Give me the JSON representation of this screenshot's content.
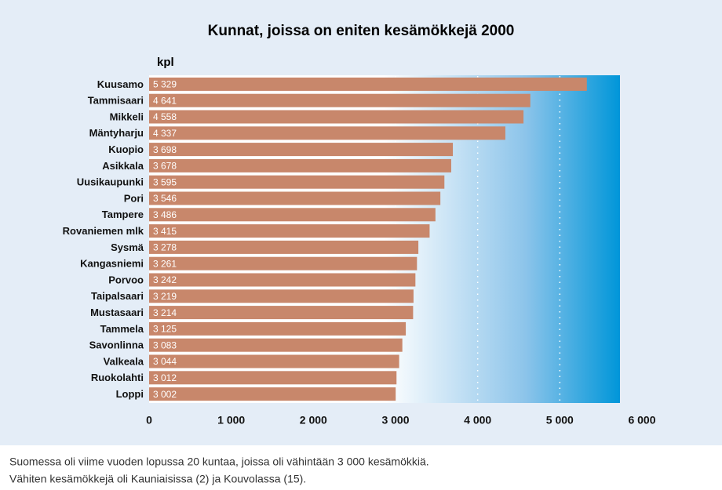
{
  "chart_data": {
    "type": "bar",
    "orientation": "horizontal",
    "title": "Kunnat, joissa on eniten kesämökkejä 2000",
    "unit_label": "kpl",
    "categories": [
      "Kuusamo",
      "Tammisaari",
      "Mikkeli",
      "Mäntyharju",
      "Kuopio",
      "Asikkala",
      "Uusikaupunki",
      "Pori",
      "Tampere",
      "Rovaniemen mlk",
      "Sysmä",
      "Kangasniemi",
      "Porvoo",
      "Taipalsaari",
      "Mustasaari",
      "Tammela",
      "Savonlinna",
      "Valkeala",
      "Ruokolahti",
      "Loppi"
    ],
    "values": [
      5329,
      4641,
      4558,
      4337,
      3698,
      3678,
      3595,
      3546,
      3486,
      3415,
      3278,
      3261,
      3242,
      3219,
      3214,
      3125,
      3083,
      3044,
      3012,
      3002
    ],
    "value_labels": [
      "5 329",
      "4 641",
      "4 558",
      "4 337",
      "3 698",
      "3 678",
      "3 595",
      "3 546",
      "3 486",
      "3 415",
      "3 278",
      "3 261",
      "3 242",
      "3 219",
      "3 214",
      "3 125",
      "3 083",
      "3 044",
      "3 012",
      "3 002"
    ],
    "color": "#c8876b",
    "xlim": [
      0,
      6000
    ],
    "xticks": [
      0,
      {
        "value": 1000,
        "label": "1 000"
      },
      {
        "value": 2000,
        "label": "2 000"
      },
      {
        "value": 3000,
        "label": "3 000"
      },
      {
        "value": 4000,
        "label": "4 000"
      },
      {
        "value": 5000,
        "label": "5 000"
      },
      {
        "value": 6000,
        "label": "6 000"
      }
    ],
    "grid": true,
    "notes": [
      "Suomessa oli viime vuoden lopussa 20 kuntaa, joissa oli vähintään 3 000 kesämökkiä.",
      "Vähiten kesämökkejä oli Kauniaisissa (2) ja Kouvolassa (15)."
    ]
  }
}
